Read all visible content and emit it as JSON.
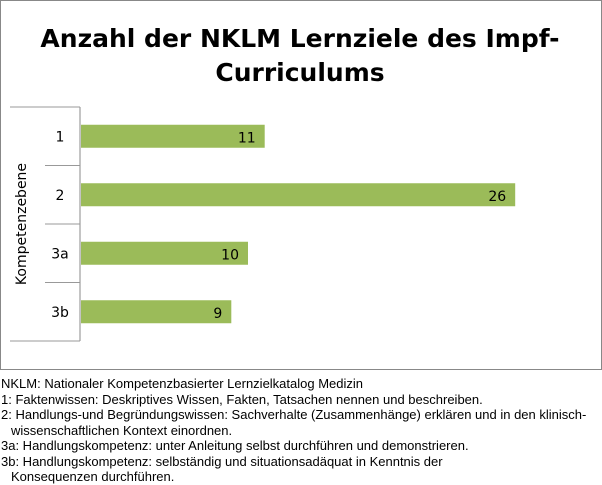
{
  "chart_data": {
    "type": "bar",
    "orientation": "horizontal",
    "title_lines": [
      "Anzahl der NKLM Lernziele des Impf-",
      "Curriculums"
    ],
    "categories": [
      "1",
      "2",
      "3a",
      "3b"
    ],
    "values": [
      11,
      26,
      10,
      9
    ],
    "ylabel": "Kompetenzebene",
    "xlabel": "",
    "xlim": [
      0,
      31
    ],
    "grid": false,
    "legend": "none",
    "bar_color": "#9BBB59"
  },
  "notes": [
    "NKLM: Nationaler Kompetenzbasierter Lernzielkatalog Medizin",
    "1: Faktenwissen: Deskriptives Wissen, Fakten, Tatsachen nennen und beschreiben.",
    "2: Handlungs-und Begründungswissen: Sachverhalte (Zusammenhänge) erklären und in den klinisch-wissenschaftlichen Kontext einordnen.",
    "3a: Handlungskompetenz: unter Anleitung selbst durchführen und demonstrieren.",
    "3b: Handlungskompetenz: selbständig und situationsadäquat in Kenntnis der Konsequenzen durchführen."
  ]
}
